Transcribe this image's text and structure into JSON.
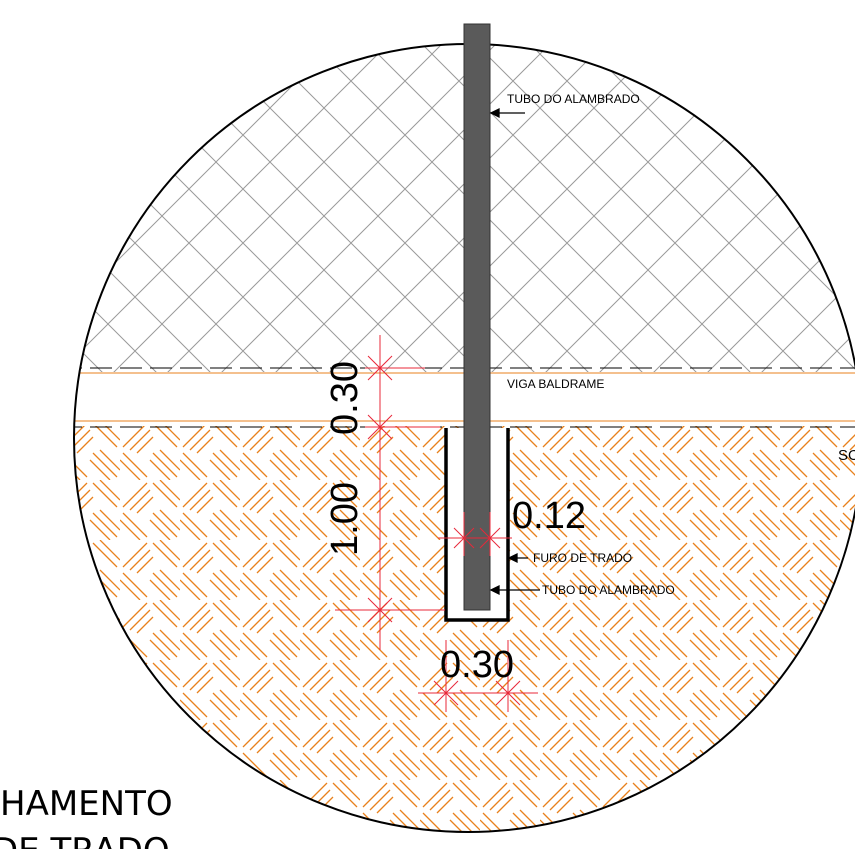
{
  "labels": {
    "tubo_top": "TUBO DO ALAMBRADO",
    "viga": "VIGA BALDRAME",
    "solo_partial": "SO",
    "furo": "FURO DE TRADO",
    "tubo_bottom": "TUBO DO ALAMBRADO"
  },
  "dimensions": {
    "beam_height": "0.30",
    "hole_depth": "1.00",
    "pipe_width": "0.12",
    "hole_width": "0.30"
  },
  "title": {
    "line1": "HAMENTO",
    "line2": "DE TRADO"
  },
  "colors": {
    "soil_hatch": "#e8811d",
    "dimension": "#e8283a",
    "pipe": "#5a5a5a",
    "fence_hatch": "#9a9a9a"
  }
}
